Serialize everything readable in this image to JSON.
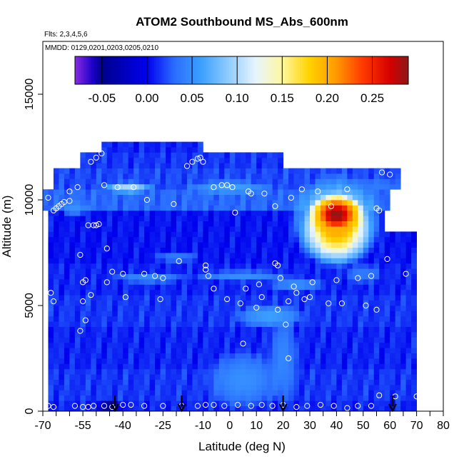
{
  "chart_data": {
    "type": "heatmap",
    "title": "ATOM2 Southbound MS_Abs_600nm",
    "subtitle_lines": [
      "Flts: 2,3,4,5,6",
      "MMDD: 0129,0201,0203,0205,0210"
    ],
    "xlabel": "Latitude (deg N)",
    "ylabel": "Altitude (m)",
    "xlim": [
      -70,
      80
    ],
    "ylim": [
      0,
      17500
    ],
    "xticks_labeled": [
      -70,
      -55,
      -40,
      -25,
      -10,
      0,
      10,
      20,
      30,
      40,
      50,
      60,
      70,
      80
    ],
    "xticks_minor": [
      -65,
      -60,
      -50,
      -45,
      -35,
      -30,
      -20,
      -15,
      -5,
      5,
      15,
      25,
      35,
      45,
      55,
      65,
      75
    ],
    "yticks": [
      0,
      5000,
      10000,
      15000
    ],
    "colorbar": {
      "min": -0.08,
      "max": 0.29,
      "ticks": [
        -0.05,
        0.0,
        0.05,
        0.1,
        0.15,
        0.2,
        0.25
      ],
      "tick_labels": [
        "-0.05",
        "0.00",
        "0.05",
        "0.10",
        "0.15",
        "0.20",
        "0.25"
      ],
      "stops": [
        {
          "v": -0.08,
          "c": "#8a2be2"
        },
        {
          "v": -0.06,
          "c": "#1a00c8"
        },
        {
          "v": -0.05,
          "c": "#00008b"
        },
        {
          "v": 0.0,
          "c": "#0000ee"
        },
        {
          "v": 0.03,
          "c": "#2a6cff"
        },
        {
          "v": 0.06,
          "c": "#3ca0ff"
        },
        {
          "v": 0.09,
          "c": "#8ecbff"
        },
        {
          "v": 0.12,
          "c": "#e6f4ff"
        },
        {
          "v": 0.15,
          "c": "#fff8a0"
        },
        {
          "v": 0.18,
          "c": "#ffd200"
        },
        {
          "v": 0.21,
          "c": "#ff9a00"
        },
        {
          "v": 0.24,
          "c": "#ff3800"
        },
        {
          "v": 0.27,
          "c": "#d40000"
        },
        {
          "v": 0.29,
          "c": "#8b1a1a"
        }
      ]
    },
    "background_value": 0.005,
    "layers": [
      {
        "alt": [
          0,
          500
        ],
        "lat": [
          -68,
          70
        ],
        "v": 0.01
      },
      {
        "alt": [
          500,
          2000
        ],
        "lat": [
          -68,
          70
        ],
        "v": 0.015
      },
      {
        "alt": [
          2000,
          4000
        ],
        "lat": [
          -68,
          70
        ],
        "v": 0.01
      },
      {
        "alt": [
          4000,
          5500
        ],
        "lat": [
          -68,
          70
        ],
        "v": 0.015
      },
      {
        "alt": [
          5500,
          7000
        ],
        "lat": [
          -68,
          70
        ],
        "v": 0.01
      },
      {
        "alt": [
          7000,
          8500
        ],
        "lat": [
          -68,
          69
        ],
        "v": 0.005
      },
      {
        "alt": [
          8500,
          9500
        ],
        "lat": [
          -68,
          58
        ],
        "v": 0.005
      },
      {
        "alt": [
          9500,
          10500
        ],
        "lat": [
          -70,
          60
        ],
        "v": 0.03
      },
      {
        "alt": [
          10500,
          11500
        ],
        "lat": [
          -65,
          64
        ],
        "v": 0.02
      },
      {
        "alt": [
          11500,
          12200
        ],
        "lat": [
          -55,
          20
        ],
        "v": 0.015
      },
      {
        "alt": [
          12200,
          12700
        ],
        "lat": [
          -47,
          -10
        ],
        "v": 0.01
      }
    ],
    "blobs": [
      {
        "lat": 40,
        "alt": 9300,
        "rx": 11,
        "ry": 1100,
        "v": 0.29
      },
      {
        "lat": 40,
        "alt": 8600,
        "rx": 14,
        "ry": 1700,
        "v": 0.2
      },
      {
        "lat": 40,
        "alt": 9000,
        "rx": 18,
        "ry": 2300,
        "v": 0.1
      },
      {
        "lat": -38,
        "alt": 10600,
        "rx": 10,
        "ry": 300,
        "v": 0.1
      },
      {
        "lat": 0,
        "alt": 10600,
        "rx": 18,
        "ry": 350,
        "v": 0.06
      },
      {
        "lat": -30,
        "alt": 6300,
        "rx": 16,
        "ry": 250,
        "v": 0.05
      },
      {
        "lat": 5,
        "alt": 6400,
        "rx": 20,
        "ry": 300,
        "v": 0.05
      },
      {
        "lat": 15,
        "alt": 4500,
        "rx": 14,
        "ry": 600,
        "v": 0.06
      },
      {
        "lat": 25,
        "alt": 6000,
        "rx": 12,
        "ry": 400,
        "v": 0.05
      },
      {
        "lat": 5,
        "alt": 1500,
        "rx": 15,
        "ry": 1500,
        "v": 0.05
      },
      {
        "lat": -20,
        "alt": 7300,
        "rx": 10,
        "ry": 300,
        "v": 0.04
      },
      {
        "lat": 20,
        "alt": 2500,
        "rx": 6,
        "ry": 2500,
        "v": 0.045
      },
      {
        "lat": 50,
        "alt": 6500,
        "rx": 8,
        "ry": 500,
        "v": 0.04
      },
      {
        "lat": -58,
        "alt": 9600,
        "rx": 6,
        "ry": 400,
        "v": 0.05
      },
      {
        "lat": 55,
        "alt": 10700,
        "rx": 10,
        "ry": 300,
        "v": 0.04
      },
      {
        "lat": -45,
        "alt": 200,
        "rx": 5,
        "ry": 400,
        "v": -0.05
      }
    ],
    "sample_points": [
      [
        -68,
        10100
      ],
      [
        -67,
        5600
      ],
      [
        -66,
        5200
      ],
      [
        -66,
        9500
      ],
      [
        -65,
        9600
      ],
      [
        -64,
        9700
      ],
      [
        -63,
        9800
      ],
      [
        -62,
        9900
      ],
      [
        -60,
        9950
      ],
      [
        -60,
        10400
      ],
      [
        -57,
        10600
      ],
      [
        -56,
        7400
      ],
      [
        -55,
        6100
      ],
      [
        -55,
        5200
      ],
      [
        -54,
        4300
      ],
      [
        -56,
        3800
      ],
      [
        -54,
        6200
      ],
      [
        -52,
        5500
      ],
      [
        -53,
        8800
      ],
      [
        -51,
        8800
      ],
      [
        -50,
        8800
      ],
      [
        -49,
        8850
      ],
      [
        -52,
        11800
      ],
      [
        -50,
        12000
      ],
      [
        -48,
        12200
      ],
      [
        -47,
        10700
      ],
      [
        -46,
        7700
      ],
      [
        -44,
        6600
      ],
      [
        -46,
        6100
      ],
      [
        -42,
        10600
      ],
      [
        -40,
        6500
      ],
      [
        -39,
        5400
      ],
      [
        -36,
        10600
      ],
      [
        -32,
        6500
      ],
      [
        -31,
        10000
      ],
      [
        -28,
        6400
      ],
      [
        -26,
        5300
      ],
      [
        -25,
        6300
      ],
      [
        -21,
        9800
      ],
      [
        -19,
        7100
      ],
      [
        -16,
        11600
      ],
      [
        -14,
        11800
      ],
      [
        -12,
        11950
      ],
      [
        -11,
        12000
      ],
      [
        -10,
        11800
      ],
      [
        -9,
        6900
      ],
      [
        -9,
        6700
      ],
      [
        -8,
        6400
      ],
      [
        -6,
        5800
      ],
      [
        -6,
        10600
      ],
      [
        -3,
        10700
      ],
      [
        -1,
        5300
      ],
      [
        -1,
        10700
      ],
      [
        1,
        10600
      ],
      [
        2,
        9400
      ],
      [
        4,
        5100
      ],
      [
        5,
        3200
      ],
      [
        6,
        5800
      ],
      [
        7,
        10400
      ],
      [
        8,
        10300
      ],
      [
        10,
        4900
      ],
      [
        11,
        6000
      ],
      [
        12,
        5400
      ],
      [
        13,
        10300
      ],
      [
        17,
        7000
      ],
      [
        17,
        9700
      ],
      [
        18,
        6900
      ],
      [
        18,
        4800
      ],
      [
        19,
        6300
      ],
      [
        21,
        4100
      ],
      [
        22,
        2500
      ],
      [
        22,
        5200
      ],
      [
        23,
        10100
      ],
      [
        24,
        5900
      ],
      [
        25,
        5600
      ],
      [
        27,
        10500
      ],
      [
        28,
        5300
      ],
      [
        30,
        5400
      ],
      [
        31,
        6100
      ],
      [
        33,
        10400
      ],
      [
        37,
        5100
      ],
      [
        38,
        9700
      ],
      [
        40,
        6200
      ],
      [
        42,
        5100
      ],
      [
        44,
        10500
      ],
      [
        48,
        6300
      ],
      [
        51,
        5000
      ],
      [
        53,
        6400
      ],
      [
        55,
        4800
      ],
      [
        55,
        9600
      ],
      [
        56,
        9500
      ],
      [
        59,
        7200
      ],
      [
        57,
        11300
      ],
      [
        60,
        11200
      ],
      [
        66,
        6500
      ],
      [
        -68,
        250
      ],
      [
        -66,
        200
      ],
      [
        -58,
        250
      ],
      [
        -55,
        200
      ],
      [
        -53,
        200
      ],
      [
        -51,
        250
      ],
      [
        -47,
        250
      ],
      [
        -44,
        200
      ],
      [
        -40,
        300
      ],
      [
        -37,
        300
      ],
      [
        -32,
        250
      ],
      [
        -25,
        250
      ],
      [
        -18,
        250
      ],
      [
        -12,
        250
      ],
      [
        -9,
        300
      ],
      [
        -6,
        300
      ],
      [
        -2,
        250
      ],
      [
        3,
        300
      ],
      [
        8,
        250
      ],
      [
        12,
        300
      ],
      [
        16,
        250
      ],
      [
        20,
        300
      ],
      [
        25,
        200
      ],
      [
        29,
        250
      ],
      [
        34,
        300
      ],
      [
        39,
        250
      ],
      [
        44,
        150
      ],
      [
        48,
        250
      ],
      [
        53,
        250
      ],
      [
        56,
        750
      ],
      [
        62,
        700
      ],
      [
        70,
        700
      ]
    ],
    "arrows_lat": [
      -43,
      -18,
      20,
      61
    ]
  }
}
